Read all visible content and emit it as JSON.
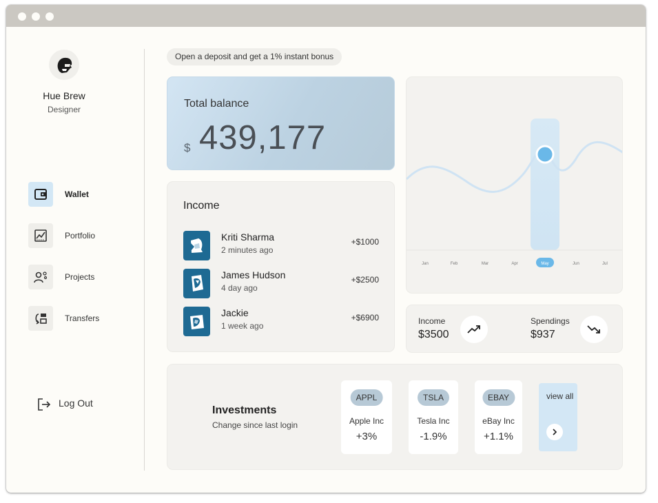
{
  "profile": {
    "name": "Hue Brew",
    "role": "Designer"
  },
  "nav": [
    {
      "label": "Wallet",
      "icon": "wallet-icon",
      "active": true
    },
    {
      "label": "Portfolio",
      "icon": "chart-icon",
      "active": false
    },
    {
      "label": "Projects",
      "icon": "team-icon",
      "active": false
    },
    {
      "label": "Transfers",
      "icon": "transfer-icon",
      "active": false
    }
  ],
  "logout": {
    "label": "Log Out"
  },
  "promo": {
    "text": "Open a deposit and get a 1% instant bonus"
  },
  "balance": {
    "title": "Total balance",
    "currency": "$",
    "amount": "439,177"
  },
  "income": {
    "title": "Income",
    "transactions": [
      {
        "name": "Kriti Sharma",
        "time": "2 minutes ago",
        "amount": "+$1000"
      },
      {
        "name": "James Hudson",
        "time": "4 day ago",
        "amount": "+$2500"
      },
      {
        "name": "Jackie",
        "time": "1 week ago",
        "amount": "+$6900"
      }
    ]
  },
  "chart": {
    "months": [
      "Jan",
      "Feb",
      "Mar",
      "Apr",
      "May",
      "Jun",
      "Jul"
    ],
    "selected_month": "May",
    "accent": "#6ab8e8"
  },
  "summary": {
    "income_label": "Income",
    "income_value": "$3500",
    "spendings_label": "Spendings",
    "spendings_value": "$937"
  },
  "investments": {
    "title": "Investments",
    "subtitle": "Change since last login",
    "stocks": [
      {
        "ticker": "APPL",
        "company": "Apple Inc",
        "change": "+3%"
      },
      {
        "ticker": "TSLA",
        "company": "Tesla Inc",
        "change": "-1.9%"
      },
      {
        "ticker": "EBAY",
        "company": "eBay Inc",
        "change": "+1.1%"
      }
    ],
    "view_all": "view all"
  },
  "colors": {
    "accent_light": "#d3e7f5",
    "tx_icon_bg": "#1e6a93",
    "ticker_bg": "#b7c9d6"
  }
}
